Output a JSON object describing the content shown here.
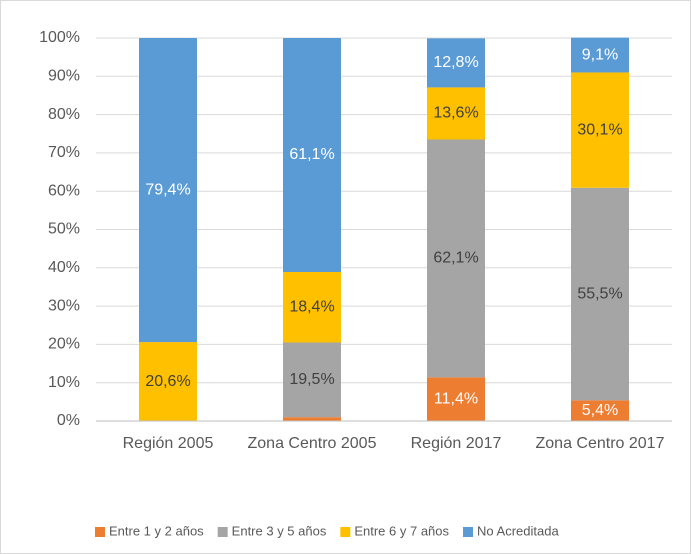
{
  "chart_data": {
    "type": "stacked_bar",
    "categories": [
      "Región 2005",
      "Zona Centro 2005",
      "Región 2017",
      "Zona Centro 2017"
    ],
    "series": [
      {
        "name": "Entre 1 y 2 años",
        "color": "#ed7d31",
        "label_color": "#ffffff",
        "values": [
          0,
          1.0,
          11.4,
          5.4
        ],
        "value_labels": [
          null,
          null,
          "11,4%",
          "5,4%"
        ]
      },
      {
        "name": "Entre 3 y 5 años",
        "color": "#a5a5a5",
        "label_color": "#404040",
        "values": [
          0,
          19.5,
          62.1,
          55.5
        ],
        "value_labels": [
          null,
          "19,5%",
          "62,1%",
          "55,5%"
        ]
      },
      {
        "name": "Entre 6 y 7 años",
        "color": "#ffc000",
        "label_color": "#404040",
        "values": [
          20.6,
          18.4,
          13.6,
          30.1
        ],
        "value_labels": [
          "20,6%",
          "18,4%",
          "13,6%",
          "30,1%"
        ]
      },
      {
        "name": "No Acreditada",
        "color": "#5b9bd5",
        "label_color": "#ffffff",
        "values": [
          79.4,
          61.1,
          12.8,
          9.1
        ],
        "value_labels": [
          "79,4%",
          "61,1%",
          "12,8%",
          "9,1%"
        ]
      }
    ],
    "ylim": [
      0,
      100
    ],
    "yticks": [
      {
        "value": 0,
        "label": "0%"
      },
      {
        "value": 10,
        "label": "10%"
      },
      {
        "value": 20,
        "label": "20%"
      },
      {
        "value": 30,
        "label": "30%"
      },
      {
        "value": 40,
        "label": "40%"
      },
      {
        "value": 50,
        "label": "50%"
      },
      {
        "value": 60,
        "label": "60%"
      },
      {
        "value": 70,
        "label": "70%"
      },
      {
        "value": 80,
        "label": "80%"
      },
      {
        "value": 90,
        "label": "90%"
      },
      {
        "value": 100,
        "label": "100%"
      }
    ],
    "grid": true,
    "legend": "bottom"
  }
}
